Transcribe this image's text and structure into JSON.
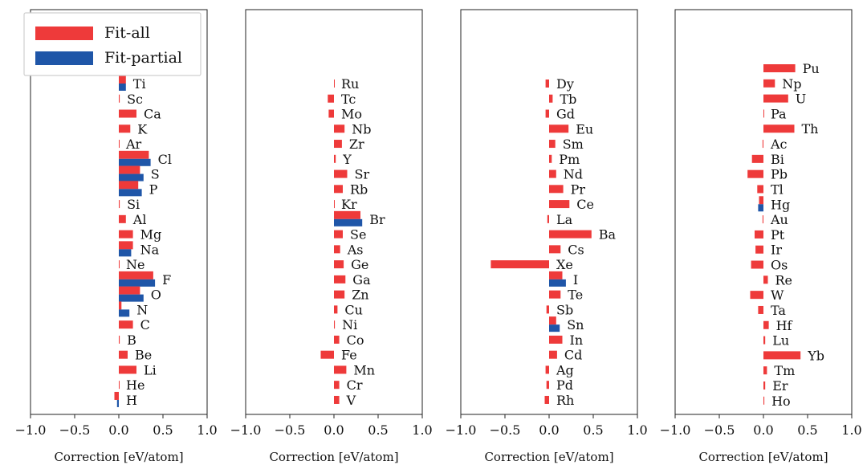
{
  "style": {
    "fit_all_color": "#ee3a3a",
    "fit_partial_color": "#1f56a8"
  },
  "legend": {
    "items": [
      "Fit-all",
      "Fit-partial"
    ],
    "position": "top-left of first panel"
  },
  "chart_data": [
    {
      "type": "bar",
      "orientation": "horizontal",
      "xlabel": "Correction [eV/atom]",
      "xlim": [
        -1.0,
        1.0
      ],
      "xticks": [
        "−1.0",
        "−0.5",
        "0.0",
        "0.5",
        "1.0"
      ],
      "categories": [
        "Ti",
        "Sc",
        "Ca",
        "K",
        "Ar",
        "Cl",
        "S",
        "P",
        "Si",
        "Al",
        "Mg",
        "Na",
        "Ne",
        "F",
        "O",
        "N",
        "C",
        "B",
        "Be",
        "Li",
        "He",
        "H"
      ],
      "series": [
        {
          "name": "Fit-all",
          "values": [
            0.08,
            0.01,
            0.2,
            0.13,
            0.0,
            0.34,
            0.24,
            0.22,
            0.01,
            0.08,
            0.16,
            0.16,
            0.0,
            0.39,
            0.24,
            0.03,
            0.16,
            0.01,
            0.1,
            0.2,
            0.0,
            -0.05
          ]
        },
        {
          "name": "Fit-partial",
          "values": [
            0.08,
            null,
            null,
            null,
            null,
            0.36,
            0.28,
            0.26,
            null,
            null,
            null,
            0.14,
            null,
            0.41,
            0.28,
            0.12,
            null,
            null,
            null,
            null,
            null,
            -0.02
          ]
        }
      ]
    },
    {
      "type": "bar",
      "orientation": "horizontal",
      "xlabel": "Correction [eV/atom]",
      "xlim": [
        -1.0,
        1.0
      ],
      "xticks": [
        "−1.0",
        "−0.5",
        "0.0",
        "0.5",
        "1.0"
      ],
      "categories": [
        "Ru",
        "Tc",
        "Mo",
        "Nb",
        "Zr",
        "Y",
        "Sr",
        "Rb",
        "Kr",
        "Br",
        "Se",
        "As",
        "Ge",
        "Ga",
        "Zn",
        "Cu",
        "Ni",
        "Co",
        "Fe",
        "Mn",
        "Cr",
        "V"
      ],
      "series": [
        {
          "name": "Fit-all",
          "values": [
            0.0,
            -0.07,
            -0.06,
            0.12,
            0.09,
            0.02,
            0.15,
            0.1,
            0.0,
            0.3,
            0.1,
            0.07,
            0.11,
            0.13,
            0.12,
            0.04,
            0.01,
            0.06,
            -0.15,
            0.14,
            0.06,
            0.06
          ]
        },
        {
          "name": "Fit-partial",
          "values": [
            null,
            null,
            null,
            null,
            null,
            null,
            null,
            null,
            null,
            0.32,
            null,
            null,
            null,
            null,
            null,
            null,
            null,
            null,
            null,
            null,
            null,
            null
          ]
        }
      ]
    },
    {
      "type": "bar",
      "orientation": "horizontal",
      "xlabel": "Correction [eV/atom]",
      "xlim": [
        -1.0,
        1.0
      ],
      "xticks": [
        "−1.0",
        "−0.5",
        "0.0",
        "0.5",
        "1.0"
      ],
      "categories": [
        "Dy",
        "Tb",
        "Gd",
        "Eu",
        "Sm",
        "Pm",
        "Nd",
        "Pr",
        "Ce",
        "La",
        "Ba",
        "Cs",
        "Xe",
        "I",
        "Te",
        "Sb",
        "Sn",
        "In",
        "Cd",
        "Ag",
        "Pd",
        "Rh"
      ],
      "series": [
        {
          "name": "Fit-all",
          "values": [
            -0.04,
            0.04,
            -0.04,
            0.22,
            0.07,
            0.03,
            0.08,
            0.16,
            0.23,
            -0.02,
            0.48,
            0.13,
            -0.66,
            0.15,
            0.13,
            -0.03,
            0.08,
            0.15,
            0.09,
            -0.04,
            -0.03,
            -0.05
          ]
        },
        {
          "name": "Fit-partial",
          "values": [
            null,
            null,
            null,
            null,
            null,
            null,
            null,
            null,
            null,
            null,
            null,
            null,
            null,
            0.19,
            null,
            null,
            0.12,
            null,
            null,
            null,
            null,
            null
          ]
        }
      ]
    },
    {
      "type": "bar",
      "orientation": "horizontal",
      "xlabel": "Correction [eV/atom]",
      "xlim": [
        -1.0,
        1.0
      ],
      "xticks": [
        "−1.0",
        "−0.5",
        "0.0",
        "0.5",
        "1.0"
      ],
      "categories": [
        "Pu",
        "Np",
        "U",
        "Pa",
        "Th",
        "Ac",
        "Bi",
        "Pb",
        "Tl",
        "Hg",
        "Au",
        "Pt",
        "Ir",
        "Os",
        "Re",
        "W",
        "Ta",
        "Hf",
        "Lu",
        "Yb",
        "Tm",
        "Er",
        "Ho"
      ],
      "series": [
        {
          "name": "Fit-all",
          "values": [
            0.36,
            0.13,
            0.28,
            0.0,
            0.35,
            -0.01,
            -0.13,
            -0.18,
            -0.07,
            -0.05,
            -0.01,
            -0.1,
            -0.09,
            -0.14,
            0.05,
            -0.15,
            -0.06,
            0.06,
            0.02,
            0.42,
            0.04,
            0.02,
            0.01
          ]
        },
        {
          "name": "Fit-partial",
          "values": [
            null,
            null,
            null,
            null,
            null,
            null,
            null,
            null,
            null,
            -0.06,
            null,
            null,
            null,
            null,
            null,
            null,
            null,
            null,
            null,
            null,
            null,
            null,
            null
          ]
        }
      ]
    }
  ]
}
